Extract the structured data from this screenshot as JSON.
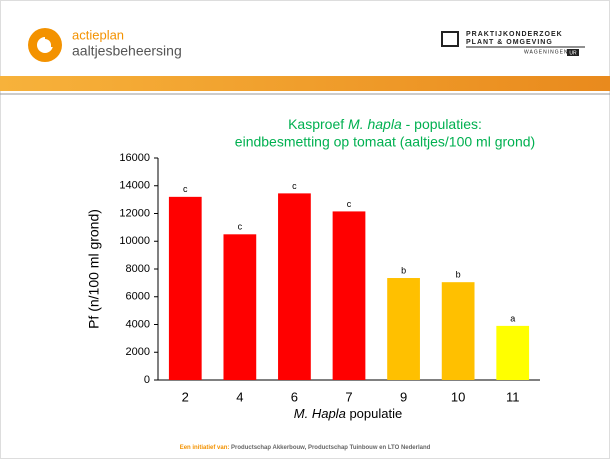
{
  "header": {
    "logo_line1": "actieplan",
    "logo_line2": "aaltjesbeheersing",
    "partner_line1": "PRAKTIJKONDERZOEK",
    "partner_line2": "PLANT & OMGEVING",
    "partner_line3": "WAGENINGEN",
    "partner_mark": "UR"
  },
  "chart_data": {
    "type": "bar",
    "title_pre": "Kasproef",
    "title_italic": "M. hapla",
    "title_post": "- populaties:",
    "title_line2": "eindbesmetting op tomaat (aaltjes/100 ml grond)",
    "y_label": "Pf (n/100 ml grond)",
    "x_label_italic": "M. Hapla",
    "x_label": "populatie",
    "categories": [
      "2",
      "4",
      "6",
      "7",
      "9",
      "10",
      "11"
    ],
    "values": [
      13200,
      10500,
      13450,
      12150,
      7350,
      7050,
      3900
    ],
    "annotations": [
      "c",
      "c",
      "c",
      "c",
      "b",
      "b",
      "a"
    ],
    "colors": [
      "#ff0000",
      "#ff0000",
      "#ff0000",
      "#ff0000",
      "#ffc000",
      "#ffc000",
      "#ffff00"
    ],
    "ylim": [
      0,
      16000
    ],
    "yticks": [
      0,
      2000,
      4000,
      6000,
      8000,
      10000,
      12000,
      14000,
      16000
    ],
    "grid": false
  },
  "footer": {
    "lead": "Een initiatief van:",
    "text": "Productschap Akkerbouw, Productschap Tuinbouw en LTO Nederland"
  }
}
